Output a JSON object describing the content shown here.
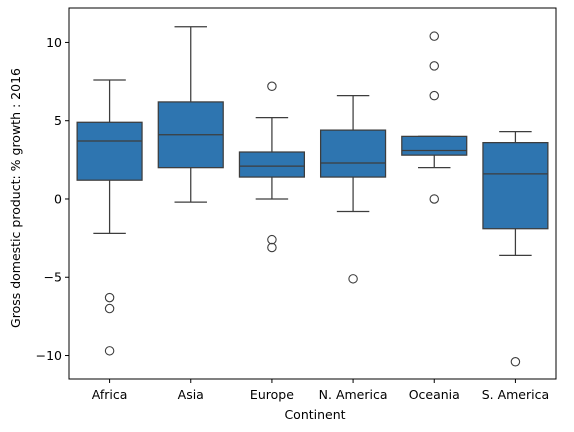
{
  "chart_data": {
    "type": "box",
    "title": "",
    "xlabel": "Continent",
    "ylabel": "Gross domestic product: % growth : 2016",
    "ylim": [
      -11.5,
      12.2
    ],
    "yticks": [
      -10,
      -5,
      0,
      5,
      10
    ],
    "ytick_labels": [
      "−10",
      "−5",
      "0",
      "5",
      "10"
    ],
    "grid": false,
    "box_color": "#2e75b0",
    "line_color": "#3d3d3d",
    "categories": [
      "Africa",
      "Asia",
      "Europe",
      "N. America",
      "Oceania",
      "S. America"
    ],
    "boxes": [
      {
        "category": "Africa",
        "whisker_low": -2.2,
        "q1": 1.2,
        "median": 3.7,
        "q3": 4.9,
        "whisker_high": 7.6,
        "outliers": [
          -6.3,
          -7.0,
          -9.7
        ]
      },
      {
        "category": "Asia",
        "whisker_low": -0.2,
        "q1": 2.0,
        "median": 4.1,
        "q3": 6.2,
        "whisker_high": 11.0,
        "outliers": []
      },
      {
        "category": "Europe",
        "whisker_low": 0.0,
        "q1": 1.4,
        "median": 2.1,
        "q3": 3.0,
        "whisker_high": 5.2,
        "outliers": [
          7.2,
          -2.6,
          -3.1
        ]
      },
      {
        "category": "N. America",
        "whisker_low": -0.8,
        "q1": 1.4,
        "median": 2.3,
        "q3": 4.4,
        "whisker_high": 6.6,
        "outliers": [
          -5.1
        ]
      },
      {
        "category": "Oceania",
        "whisker_low": 2.0,
        "q1": 2.8,
        "median": 3.1,
        "q3": 4.0,
        "whisker_high": 4.0,
        "outliers": [
          10.4,
          8.5,
          6.6,
          0.0
        ]
      },
      {
        "category": "S. America",
        "whisker_low": -3.6,
        "q1": -1.9,
        "median": 1.6,
        "q3": 3.6,
        "whisker_high": 4.3,
        "outliers": [
          -10.4
        ]
      }
    ]
  }
}
